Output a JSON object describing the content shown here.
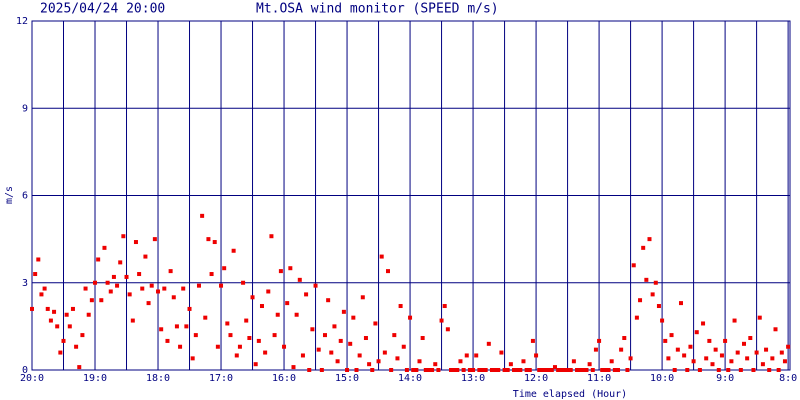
{
  "chart_data": {
    "type": "scatter",
    "title": "Mt.OSA wind monitor (SPEED m/s)",
    "subtitle": "2025/04/24 20:00",
    "x_label": "Time elapsed (Hour)",
    "y_label": "m/s",
    "color": "#ee0000",
    "grid": true,
    "xlim": [
      0,
      12.03
    ],
    "ylim": [
      0,
      12
    ],
    "yticks": [
      0,
      3,
      6,
      9,
      12
    ],
    "xticks": [
      {
        "value": 0,
        "label": "20:0"
      },
      {
        "value": 1,
        "label": "19:0"
      },
      {
        "value": 2,
        "label": "18:0"
      },
      {
        "value": 3,
        "label": "17:0"
      },
      {
        "value": 4,
        "label": "16:0"
      },
      {
        "value": 5,
        "label": "15:0"
      },
      {
        "value": 6,
        "label": "14:0"
      },
      {
        "value": 7,
        "label": "13:0"
      },
      {
        "value": 8,
        "label": "12:0"
      },
      {
        "value": 9,
        "label": "11:0"
      },
      {
        "value": 10,
        "label": "10:0"
      },
      {
        "value": 11,
        "label": "9:0"
      },
      {
        "value": 12,
        "label": "8:0"
      }
    ],
    "x_minor_ticks": [
      0.5,
      1.5,
      2.5,
      3.5,
      4.5,
      5.5,
      6.5,
      7.5,
      8.5,
      9.5,
      10.5,
      11.5
    ],
    "x": [
      0,
      0.05,
      0.1,
      0.15,
      0.2,
      0.25,
      0.3,
      0.35,
      0.4,
      0.45,
      0.5,
      0.55,
      0.6,
      0.65,
      0.7,
      0.75,
      0.8,
      0.85,
      0.9,
      0.95,
      1,
      1.05,
      1.1,
      1.15,
      1.2,
      1.25,
      1.3,
      1.35,
      1.4,
      1.45,
      1.5,
      1.55,
      1.6,
      1.65,
      1.7,
      1.75,
      1.8,
      1.85,
      1.9,
      1.95,
      2,
      2.05,
      2.1,
      2.15,
      2.2,
      2.25,
      2.3,
      2.35,
      2.4,
      2.45,
      2.5,
      2.55,
      2.6,
      2.65,
      2.7,
      2.75,
      2.8,
      2.85,
      2.9,
      2.95,
      3,
      3.05,
      3.1,
      3.15,
      3.2,
      3.25,
      3.3,
      3.35,
      3.4,
      3.45,
      3.5,
      3.55,
      3.6,
      3.65,
      3.7,
      3.75,
      3.8,
      3.85,
      3.9,
      3.95,
      4,
      4.05,
      4.1,
      4.15,
      4.2,
      4.25,
      4.3,
      4.35,
      4.4,
      4.45,
      4.5,
      4.55,
      4.6,
      4.65,
      4.7,
      4.75,
      4.8,
      4.85,
      4.9,
      4.95,
      5,
      5.05,
      5.1,
      5.15,
      5.2,
      5.25,
      5.3,
      5.35,
      5.4,
      5.45,
      5.5,
      5.55,
      5.6,
      5.65,
      5.7,
      5.75,
      5.8,
      5.85,
      5.9,
      5.95,
      6,
      6.05,
      6.1,
      6.15,
      6.2,
      6.25,
      6.3,
      6.35,
      6.4,
      6.45,
      6.5,
      6.55,
      6.6,
      6.65,
      6.7,
      6.75,
      6.8,
      6.85,
      6.9,
      6.95,
      7,
      7.05,
      7.1,
      7.15,
      7.2,
      7.25,
      7.3,
      7.35,
      7.4,
      7.45,
      7.5,
      7.55,
      7.6,
      7.65,
      7.7,
      7.75,
      7.8,
      7.85,
      7.9,
      7.95,
      8,
      8.05,
      8.1,
      8.15,
      8.2,
      8.25,
      8.3,
      8.35,
      8.4,
      8.45,
      8.5,
      8.55,
      8.6,
      8.65,
      8.7,
      8.75,
      8.8,
      8.85,
      8.9,
      8.95,
      9,
      9.05,
      9.1,
      9.15,
      9.2,
      9.25,
      9.3,
      9.35,
      9.4,
      9.45,
      9.5,
      9.55,
      9.6,
      9.65,
      9.7,
      9.75,
      9.8,
      9.85,
      9.9,
      9.95,
      10,
      10.05,
      10.1,
      10.15,
      10.2,
      10.25,
      10.3,
      10.35,
      10.4,
      10.45,
      10.5,
      10.55,
      10.6,
      10.65,
      10.7,
      10.75,
      10.8,
      10.85,
      10.9,
      10.95,
      11,
      11.05,
      11.1,
      11.15,
      11.2,
      11.25,
      11.3,
      11.35,
      11.4,
      11.45,
      11.5,
      11.55,
      11.6,
      11.65,
      11.7,
      11.75,
      11.8,
      11.85,
      11.9,
      11.95,
      12
    ],
    "values": [
      2.1,
      3.3,
      3.8,
      2.6,
      2.8,
      2.1,
      1.7,
      2.0,
      1.5,
      0.6,
      1.0,
      1.9,
      1.5,
      2.1,
      0.8,
      0.1,
      1.2,
      2.8,
      1.9,
      2.4,
      3.0,
      3.8,
      2.4,
      4.2,
      3.0,
      2.7,
      3.2,
      2.9,
      3.7,
      4.6,
      3.2,
      2.6,
      1.7,
      4.4,
      3.3,
      2.8,
      3.9,
      2.3,
      2.9,
      4.5,
      2.7,
      1.4,
      2.8,
      1.0,
      3.4,
      2.5,
      1.5,
      0.8,
      2.8,
      1.5,
      2.1,
      0.4,
      1.2,
      2.9,
      5.3,
      1.8,
      4.5,
      3.3,
      4.4,
      0.8,
      2.9,
      3.5,
      1.6,
      1.2,
      4.1,
      0.5,
      0.8,
      3.0,
      1.7,
      1.1,
      2.5,
      0.2,
      1.0,
      2.2,
      0.6,
      2.7,
      4.6,
      1.2,
      1.9,
      3.4,
      0.8,
      2.3,
      3.5,
      0.1,
      1.9,
      3.1,
      0.5,
      2.6,
      0.0,
      1.4,
      2.9,
      0.7,
      0.0,
      1.2,
      2.4,
      0.6,
      1.5,
      0.3,
      1.0,
      2.0,
      0.0,
      0.9,
      1.8,
      0.0,
      0.5,
      2.5,
      1.1,
      0.2,
      0.0,
      1.6,
      0.3,
      3.9,
      0.6,
      3.4,
      0.0,
      1.2,
      0.4,
      2.2,
      0.8,
      0.0,
      1.8,
      0.0,
      0.0,
      0.3,
      1.1,
      0.0,
      0.0,
      0.0,
      0.2,
      0.0,
      1.7,
      2.2,
      1.4,
      0.0,
      0.0,
      0.0,
      0.3,
      0.0,
      0.5,
      0.0,
      0.0,
      0.5,
      0.0,
      0.0,
      0.0,
      0.9,
      0.0,
      0.0,
      0.0,
      0.6,
      0.0,
      0.0,
      0.2,
      0.0,
      0.0,
      0.0,
      0.3,
      0.0,
      0.0,
      1.0,
      0.5,
      0.0,
      0.0,
      0.0,
      0.0,
      0.0,
      0.1,
      0.0,
      0.0,
      0.0,
      0.0,
      0.0,
      0.3,
      0.0,
      0.0,
      0.0,
      0.0,
      0.2,
      0.0,
      0.7,
      1.0,
      0.0,
      0.0,
      0.0,
      0.3,
      0.0,
      0.0,
      0.7,
      1.1,
      0.0,
      0.4,
      3.6,
      1.8,
      2.4,
      4.2,
      3.1,
      4.5,
      2.6,
      3.0,
      2.2,
      1.7,
      1.0,
      0.4,
      1.2,
      0.0,
      0.7,
      2.3,
      0.5,
      0.0,
      0.8,
      0.3,
      1.3,
      0.0,
      1.6,
      0.4,
      1.0,
      0.2,
      0.7,
      0.0,
      0.5,
      1.0,
      0.0,
      0.3,
      1.7,
      0.6,
      0.0,
      0.9,
      0.4,
      1.1,
      0.0,
      0.6,
      1.8,
      0.2,
      0.7,
      0.0,
      0.4,
      1.4,
      0.0,
      0.6,
      0.3,
      0.8
    ]
  }
}
